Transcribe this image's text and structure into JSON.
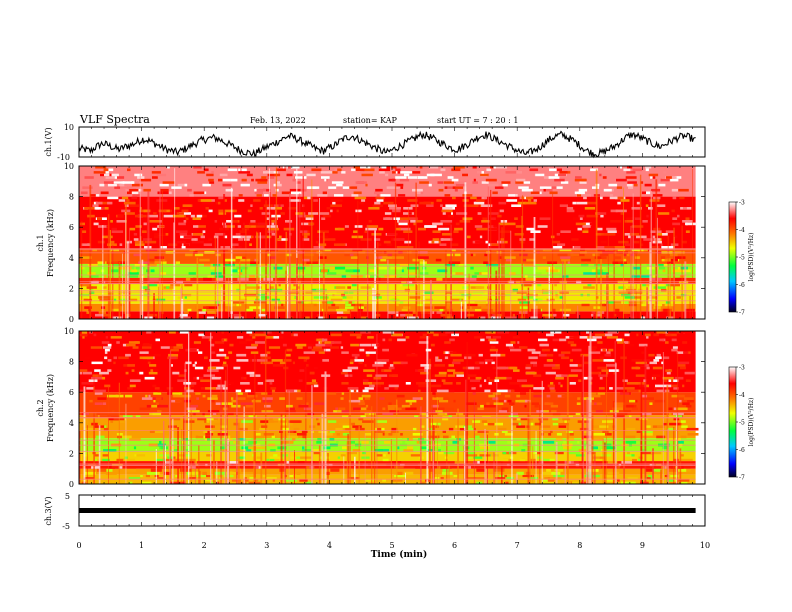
{
  "header": {
    "title": "VLF Spectra",
    "date": "Feb. 13, 2022",
    "station": "station= KAP",
    "start": "start  UT =   7 : 20 : 1"
  },
  "chart_data": [
    {
      "id": "ch1-waveform",
      "type": "line",
      "ylabel": "ch.1(V)",
      "ylim": [
        -10,
        10
      ],
      "yticks": [
        -10,
        10
      ],
      "xlim": [
        0,
        10
      ],
      "color": "#000000",
      "x_end": 9.85,
      "values": [
        -4.5,
        -5,
        -6,
        -3,
        -1,
        -2,
        -4,
        -5,
        -3,
        -2,
        0,
        2,
        1,
        -1,
        -3,
        -5,
        -6,
        -7,
        -5,
        -3,
        -1,
        1,
        2,
        3,
        2,
        0,
        -2,
        -4,
        -6,
        -7,
        -8,
        -6,
        -4,
        -2,
        0,
        2,
        4,
        3,
        1,
        -1,
        -3,
        -5,
        -6,
        -4,
        -2,
        1,
        3,
        4,
        2,
        0,
        -2,
        -4,
        -6,
        -7,
        -5,
        -3,
        -1,
        1,
        3,
        5,
        4,
        2,
        0,
        -2,
        -4,
        -5,
        -3,
        -1,
        2,
        4,
        5,
        3,
        1,
        -1,
        -3,
        -5,
        -7,
        -8,
        -6,
        -4,
        -1,
        2,
        4,
        5,
        3,
        1,
        -2,
        -5,
        -7,
        -8,
        -7,
        -5,
        -3,
        0,
        3,
        5,
        4,
        2,
        0,
        -2,
        -3,
        -1,
        1,
        3,
        4,
        3,
        1
      ]
    },
    {
      "id": "ch1-spectrogram",
      "type": "heatmap",
      "ylabel_top": "ch.1",
      "ylabel": "Frequency  (kHz)",
      "ylim": [
        0,
        10
      ],
      "yticks": [
        0,
        2,
        4,
        6,
        8,
        10
      ],
      "xlim": [
        0,
        10
      ],
      "x_end": 9.85,
      "colorbar": {
        "label": "log(PSD)(V²/Hz)",
        "range": [
          -7,
          -3
        ],
        "ticks": [
          -3,
          -4,
          -5,
          -6,
          -7
        ]
      },
      "bands": [
        {
          "from": 0,
          "to": 0.5,
          "level": -3.6
        },
        {
          "from": 0.5,
          "to": 1.0,
          "level": -4.2
        },
        {
          "from": 1.0,
          "to": 2.3,
          "level": -4.6
        },
        {
          "from": 2.3,
          "to": 2.7,
          "level": -3.8
        },
        {
          "from": 2.7,
          "to": 3.6,
          "level": -4.9
        },
        {
          "from": 3.6,
          "to": 4.6,
          "level": -4.0
        },
        {
          "from": 4.6,
          "to": 8.0,
          "level": -3.6
        },
        {
          "from": 8.0,
          "to": 10.0,
          "level": -3.3
        }
      ]
    },
    {
      "id": "ch2-spectrogram",
      "type": "heatmap",
      "ylabel_top": "ch.2",
      "ylabel": "Frequency  (kHz)",
      "ylim": [
        0,
        10
      ],
      "yticks": [
        0,
        2,
        4,
        6,
        8,
        10
      ],
      "xlim": [
        0,
        10
      ],
      "x_end": 9.85,
      "colorbar": {
        "label": "log(PSD)(V²/Hz)",
        "range": [
          -7,
          -3
        ],
        "ticks": [
          -3,
          -4,
          -5,
          -6,
          -7
        ]
      },
      "bands": [
        {
          "from": 0,
          "to": 0.6,
          "level": -4.4
        },
        {
          "from": 0.6,
          "to": 1.0,
          "level": -4.3
        },
        {
          "from": 1.0,
          "to": 1.5,
          "level": -3.7
        },
        {
          "from": 1.5,
          "to": 2.1,
          "level": -4.5
        },
        {
          "from": 2.1,
          "to": 3.0,
          "level": -4.9
        },
        {
          "from": 3.0,
          "to": 4.5,
          "level": -4.3
        },
        {
          "from": 4.5,
          "to": 6.0,
          "level": -3.9
        },
        {
          "from": 6.0,
          "to": 10.0,
          "level": -3.6
        }
      ]
    },
    {
      "id": "ch3-signal",
      "type": "line",
      "ylabel": "ch.3(V)",
      "ylim": [
        -5,
        5
      ],
      "yticks": [
        -5,
        0,
        5
      ],
      "xlim": [
        0,
        10
      ],
      "x_end": 9.85,
      "value": 0,
      "color": "#000000"
    }
  ],
  "xaxis": {
    "label": "Time  (min)",
    "ticks": [
      0,
      1,
      2,
      3,
      4,
      5,
      6,
      7,
      8,
      9,
      10
    ]
  }
}
